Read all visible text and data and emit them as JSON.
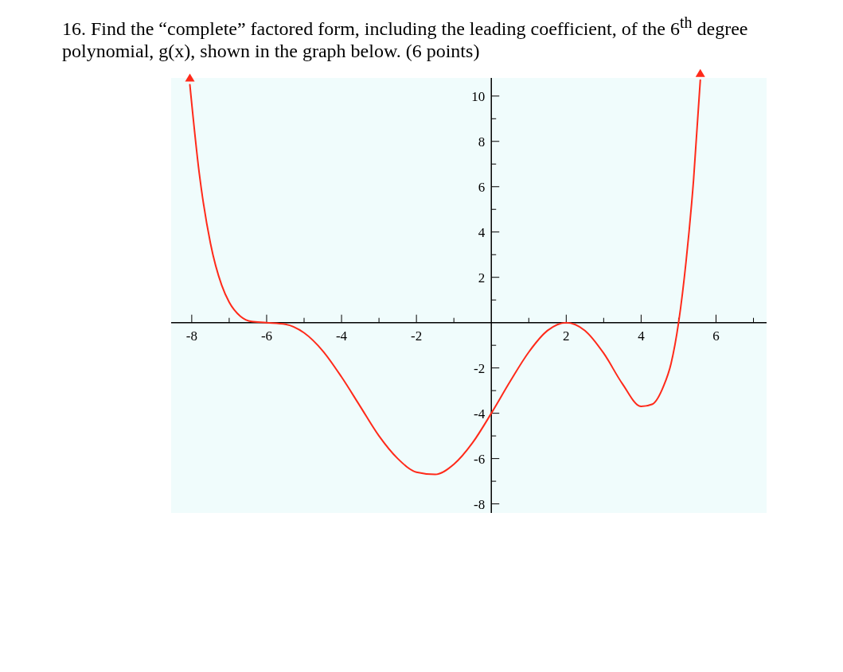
{
  "chart_data": {
    "type": "line",
    "title": "16. Find the “complete” factored form, including the leading coefficient, of the 6$^{th}$ degree polynomial, g(x), shown in the graph below. (6 points)",
    "x": [
      -8.05,
      -7.8,
      -7.5,
      -7.2,
      -7,
      -6.7,
      -6.4,
      -6,
      -5.5,
      -5,
      -4.5,
      -4,
      -3.5,
      -3,
      -2.5,
      -2,
      -1.5,
      -1,
      -0.5,
      0,
      0.5,
      1,
      1.5,
      2,
      2.5,
      3,
      3.5,
      4,
      4.3,
      4.6,
      4.8,
      5,
      5.2,
      5.4,
      5.58
    ],
    "series": [
      {
        "color": "#ff2a1a",
        "values": [
          10.5,
          6.6,
          3.5,
          1.65,
          0.9,
          0.28,
          0.05,
          0,
          -0.07,
          -0.45,
          -1.25,
          -2.4,
          -3.7,
          -5,
          -6,
          -6.6,
          -6.7,
          -6.25,
          -5.3,
          -4,
          -2.6,
          -1.3,
          -0.35,
          0,
          -0.35,
          -1.35,
          -2.7,
          -3.7,
          -3.6,
          -2.8,
          -1.8,
          0,
          2.7,
          6.3,
          10.7
        ]
      }
    ],
    "xlim": [
      -8.55,
      7.35
    ],
    "ylim": [
      -8.4,
      10.8
    ],
    "xticks": [
      {
        "value": -8,
        "label": "-8"
      },
      {
        "value": -7,
        "label": null
      },
      {
        "value": -6,
        "label": "-6"
      },
      {
        "value": -5,
        "label": null
      },
      {
        "value": -4,
        "label": "-4"
      },
      {
        "value": -3,
        "label": null
      },
      {
        "value": -2,
        "label": "-2"
      },
      {
        "value": -1,
        "label": null
      },
      {
        "value": 1,
        "label": null
      },
      {
        "value": 2,
        "label": "2"
      },
      {
        "value": 3,
        "label": null
      },
      {
        "value": 4,
        "label": "4"
      },
      {
        "value": 5,
        "label": null
      },
      {
        "value": 6,
        "label": "6"
      },
      {
        "value": 7,
        "label": null
      }
    ],
    "yticks": [
      {
        "value": -8,
        "label": "-8"
      },
      {
        "value": -7,
        "label": null
      },
      {
        "value": -6,
        "label": "-6"
      },
      {
        "value": -5,
        "label": null
      },
      {
        "value": -4,
        "label": "-4"
      },
      {
        "value": -3,
        "label": null
      },
      {
        "value": -2,
        "label": "-2"
      },
      {
        "value": -1,
        "label": null
      },
      {
        "value": 1,
        "label": null
      },
      {
        "value": 2,
        "label": "2"
      },
      {
        "value": 3,
        "label": null
      },
      {
        "value": 4,
        "label": "4"
      },
      {
        "value": 5,
        "label": null
      },
      {
        "value": 6,
        "label": "6"
      },
      {
        "value": 7,
        "label": null
      },
      {
        "value": 8,
        "label": "8"
      },
      {
        "value": 9,
        "label": null
      },
      {
        "value": 10,
        "label": "10"
      }
    ],
    "grid": false,
    "marker": "none",
    "line_style": "solid"
  }
}
